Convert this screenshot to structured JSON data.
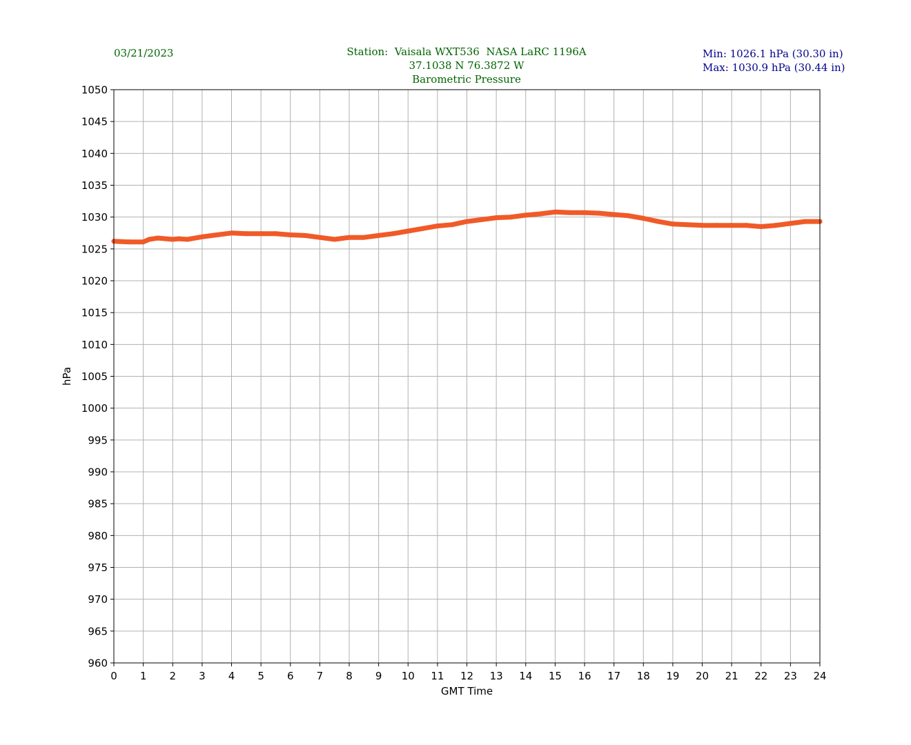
{
  "header": {
    "date": "03/21/2023",
    "station_line": "Station:  Vaisala WXT536  NASA LaRC 1196A",
    "coords_line": "37.1038 N 76.3872 W",
    "title_line": "Barometric Pressure",
    "min_line": "Min: 1026.1 hPa (30.30 in)",
    "max_line": "Max: 1030.9 hPa (30.44 in)"
  },
  "colors": {
    "header_green": "#006400",
    "header_navy": "#00008b",
    "series": "#f05a28",
    "grid": "#b0b0b0"
  },
  "chart_data": {
    "type": "line",
    "xlabel": "GMT Time",
    "ylabel": "hPa",
    "xlim": [
      0,
      24
    ],
    "ylim": [
      960,
      1050
    ],
    "xticks": [
      0,
      1,
      2,
      3,
      4,
      5,
      6,
      7,
      8,
      9,
      10,
      11,
      12,
      13,
      14,
      15,
      16,
      17,
      18,
      19,
      20,
      21,
      22,
      23,
      24
    ],
    "yticks": [
      960,
      965,
      970,
      975,
      980,
      985,
      990,
      995,
      1000,
      1005,
      1010,
      1015,
      1020,
      1025,
      1030,
      1035,
      1040,
      1045,
      1050
    ],
    "grid": true,
    "series": [
      {
        "name": "",
        "x": [
          0,
          0.5,
          1.0,
          1.2,
          1.5,
          2.0,
          2.2,
          2.5,
          3.0,
          3.5,
          4.0,
          4.5,
          5.0,
          5.5,
          6.0,
          6.5,
          7.0,
          7.5,
          8.0,
          8.5,
          9.0,
          9.5,
          10.0,
          10.5,
          11.0,
          11.5,
          12.0,
          12.5,
          13.0,
          13.5,
          14.0,
          14.5,
          15.0,
          15.5,
          16.0,
          16.5,
          17.0,
          17.5,
          18.0,
          18.5,
          19.0,
          19.5,
          20.0,
          20.5,
          21.0,
          21.5,
          22.0,
          22.5,
          23.0,
          23.5,
          24.0
        ],
        "y": [
          1026.2,
          1026.1,
          1026.1,
          1026.5,
          1026.7,
          1026.5,
          1026.6,
          1026.5,
          1026.9,
          1027.2,
          1027.5,
          1027.4,
          1027.4,
          1027.4,
          1027.2,
          1027.1,
          1026.8,
          1026.5,
          1026.8,
          1026.8,
          1027.1,
          1027.4,
          1027.8,
          1028.2,
          1028.6,
          1028.8,
          1029.3,
          1029.6,
          1029.9,
          1030.0,
          1030.3,
          1030.5,
          1030.8,
          1030.7,
          1030.7,
          1030.6,
          1030.4,
          1030.2,
          1029.8,
          1029.3,
          1028.9,
          1028.8,
          1028.7,
          1028.7,
          1028.7,
          1028.7,
          1028.5,
          1028.7,
          1029.0,
          1029.3,
          1029.3
        ]
      }
    ]
  }
}
